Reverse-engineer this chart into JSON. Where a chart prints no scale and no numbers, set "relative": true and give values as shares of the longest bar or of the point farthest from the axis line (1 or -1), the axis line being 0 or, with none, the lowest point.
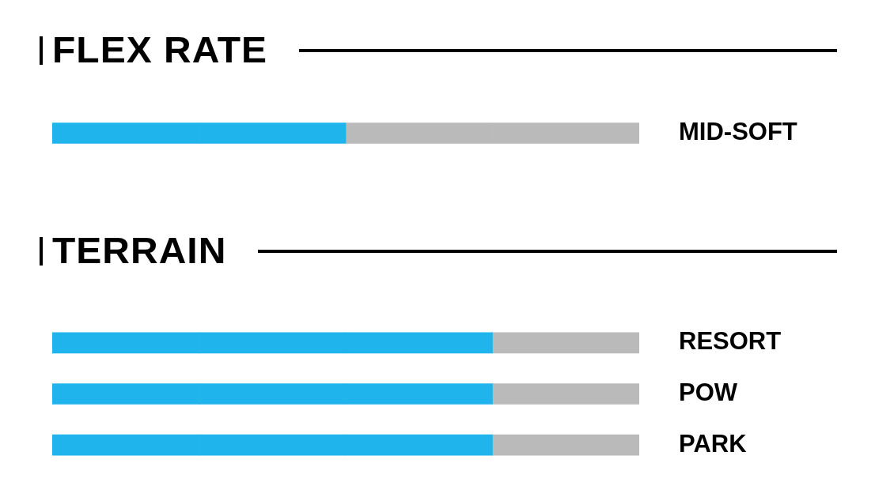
{
  "chart_data": [
    {
      "type": "bar",
      "title": "FLEX RATE",
      "orientation": "horizontal",
      "stacked": true,
      "relative": true,
      "legend": false,
      "tick_labels": "y",
      "categories": [
        "MID-SOFT"
      ],
      "series": [
        {
          "color": "#1fb5ec",
          "values": [
            0.25
          ]
        },
        {
          "color": "#1fb5ec",
          "values": [
            0.25
          ]
        },
        {
          "color": "#bababa",
          "values": [
            0.25
          ]
        },
        {
          "color": "#bababa",
          "values": [
            0.25
          ]
        }
      ]
    },
    {
      "type": "bar",
      "title": "TERRAIN",
      "orientation": "horizontal",
      "stacked": true,
      "relative": true,
      "legend": false,
      "tick_labels": "y",
      "categories": [
        "RESORT",
        "POW",
        "PARK"
      ],
      "series": [
        {
          "color": "#1fb5ec",
          "values": [
            0.25,
            0.25,
            0.25
          ]
        },
        {
          "color": "#1fb5ec",
          "values": [
            0.25,
            0.25,
            0.25
          ]
        },
        {
          "color": "#1fb5ec",
          "values": [
            0.25,
            0.25,
            0.25
          ]
        },
        {
          "color": "#bababa",
          "values": [
            0.25,
            0.25,
            0.25
          ]
        }
      ]
    }
  ]
}
